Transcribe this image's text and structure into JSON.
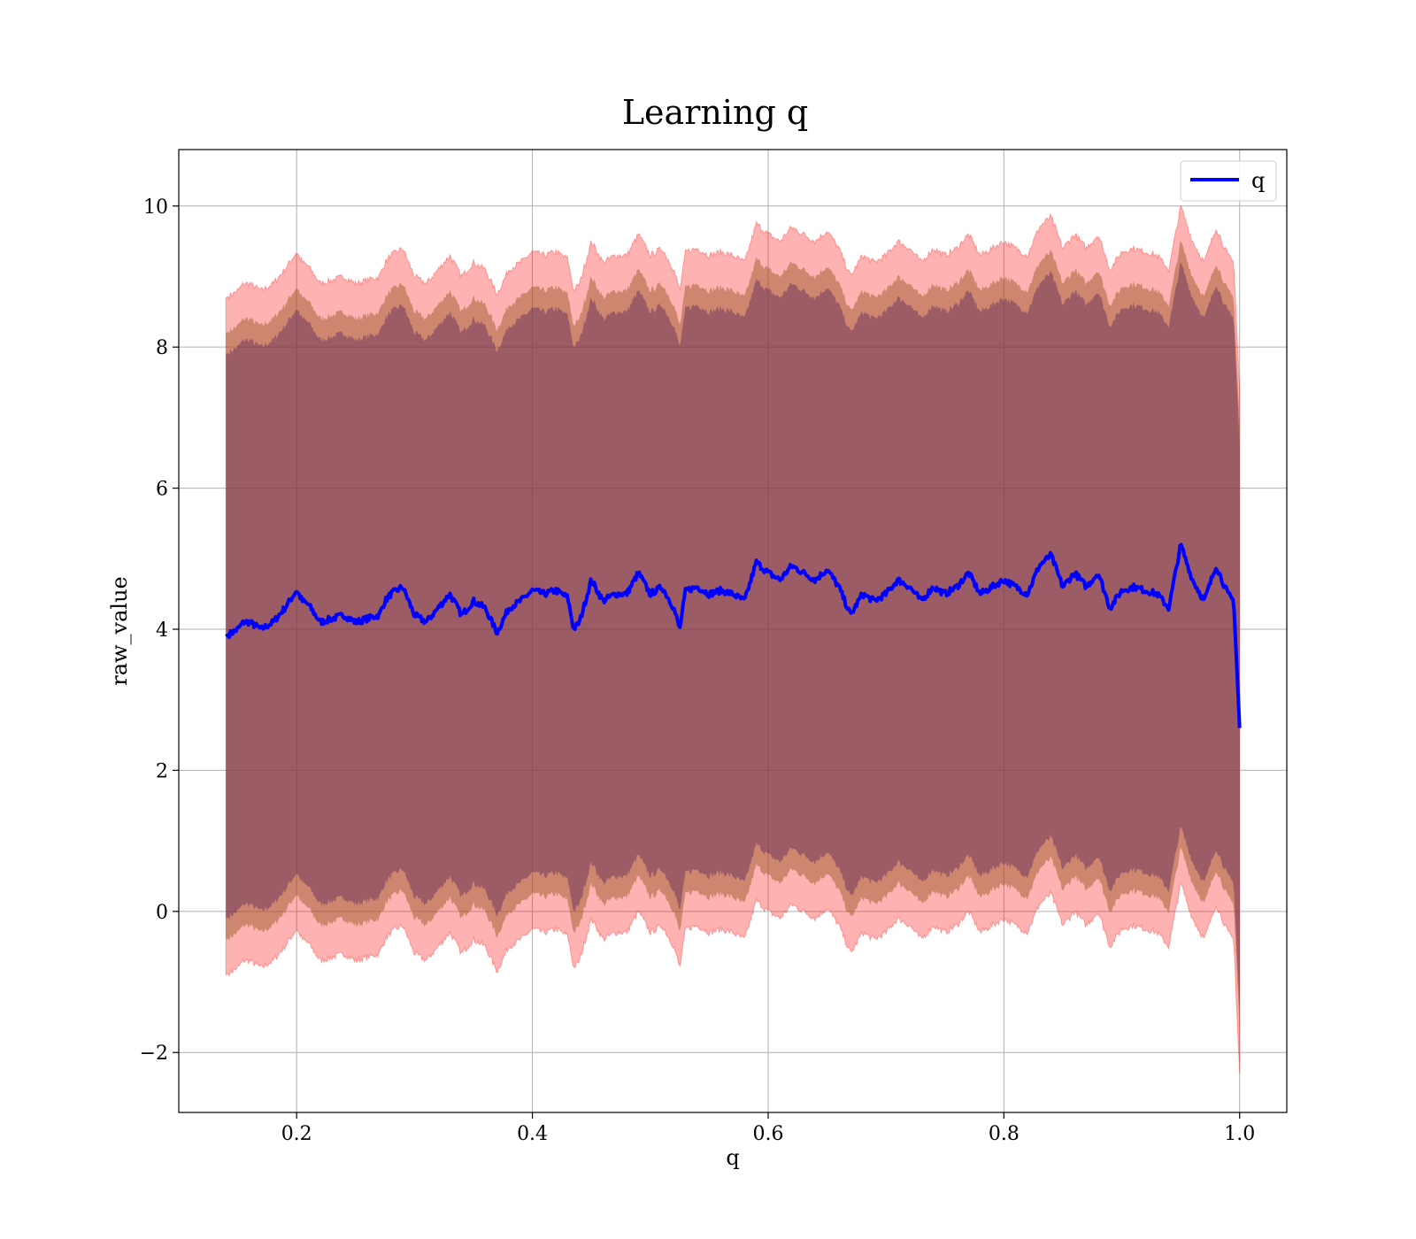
{
  "chart_data": {
    "type": "line",
    "title": "Learning q",
    "xlabel": "q",
    "ylabel": "raw_value",
    "xlim": [
      0.1,
      1.04
    ],
    "ylim": [
      -2.85,
      10.8
    ],
    "xticks": [
      0.2,
      0.4,
      0.6,
      0.8,
      1.0
    ],
    "xtick_labels": [
      "0.2",
      "0.4",
      "0.6",
      "0.8",
      "1.0"
    ],
    "yticks": [
      -2,
      0,
      2,
      4,
      6,
      8,
      10
    ],
    "ytick_labels": [
      "−2",
      "0",
      "2",
      "4",
      "6",
      "8",
      "10"
    ],
    "grid": true,
    "legend": {
      "position": "top-right",
      "entries": [
        "q"
      ]
    },
    "colors": {
      "line": "#0000ff",
      "band_outer": "#ff0000",
      "band_middle": "#a05a2c",
      "band_inner": "#5a2a5a",
      "grid": "#b0b0b0"
    },
    "band_offsets": {
      "outer": 4.8,
      "middle": 4.3,
      "inner": 4.0
    },
    "series": [
      {
        "name": "q",
        "x": [
          0.14,
          0.15,
          0.155,
          0.16,
          0.17,
          0.18,
          0.19,
          0.2,
          0.205,
          0.21,
          0.22,
          0.23,
          0.24,
          0.25,
          0.26,
          0.27,
          0.275,
          0.28,
          0.29,
          0.3,
          0.31,
          0.32,
          0.33,
          0.34,
          0.35,
          0.36,
          0.37,
          0.38,
          0.39,
          0.4,
          0.41,
          0.42,
          0.43,
          0.435,
          0.44,
          0.45,
          0.46,
          0.47,
          0.48,
          0.49,
          0.5,
          0.51,
          0.52,
          0.525,
          0.53,
          0.54,
          0.55,
          0.56,
          0.57,
          0.58,
          0.59,
          0.6,
          0.61,
          0.62,
          0.63,
          0.64,
          0.65,
          0.66,
          0.67,
          0.68,
          0.69,
          0.7,
          0.71,
          0.72,
          0.73,
          0.74,
          0.75,
          0.76,
          0.77,
          0.78,
          0.79,
          0.8,
          0.81,
          0.82,
          0.83,
          0.84,
          0.85,
          0.86,
          0.87,
          0.88,
          0.89,
          0.9,
          0.91,
          0.92,
          0.93,
          0.94,
          0.95,
          0.96,
          0.97,
          0.98,
          0.99,
          0.995,
          1.0
        ],
        "y": [
          3.9,
          4.0,
          4.1,
          4.1,
          4.0,
          4.1,
          4.3,
          4.55,
          4.4,
          4.35,
          4.1,
          4.15,
          4.2,
          4.1,
          4.15,
          4.2,
          4.4,
          4.5,
          4.6,
          4.2,
          4.1,
          4.3,
          4.5,
          4.2,
          4.4,
          4.3,
          3.95,
          4.3,
          4.4,
          4.55,
          4.5,
          4.55,
          4.45,
          4.0,
          4.1,
          4.7,
          4.4,
          4.5,
          4.5,
          4.8,
          4.5,
          4.6,
          4.3,
          4.0,
          4.55,
          4.6,
          4.5,
          4.55,
          4.5,
          4.4,
          4.95,
          4.8,
          4.7,
          4.9,
          4.8,
          4.7,
          4.85,
          4.6,
          4.2,
          4.5,
          4.4,
          4.5,
          4.7,
          4.6,
          4.4,
          4.6,
          4.5,
          4.6,
          4.8,
          4.5,
          4.6,
          4.7,
          4.6,
          4.5,
          4.9,
          5.05,
          4.6,
          4.8,
          4.6,
          4.8,
          4.3,
          4.55,
          4.6,
          4.55,
          4.5,
          4.3,
          5.2,
          4.7,
          4.4,
          4.9,
          4.5,
          4.4,
          2.6
        ]
      }
    ]
  }
}
